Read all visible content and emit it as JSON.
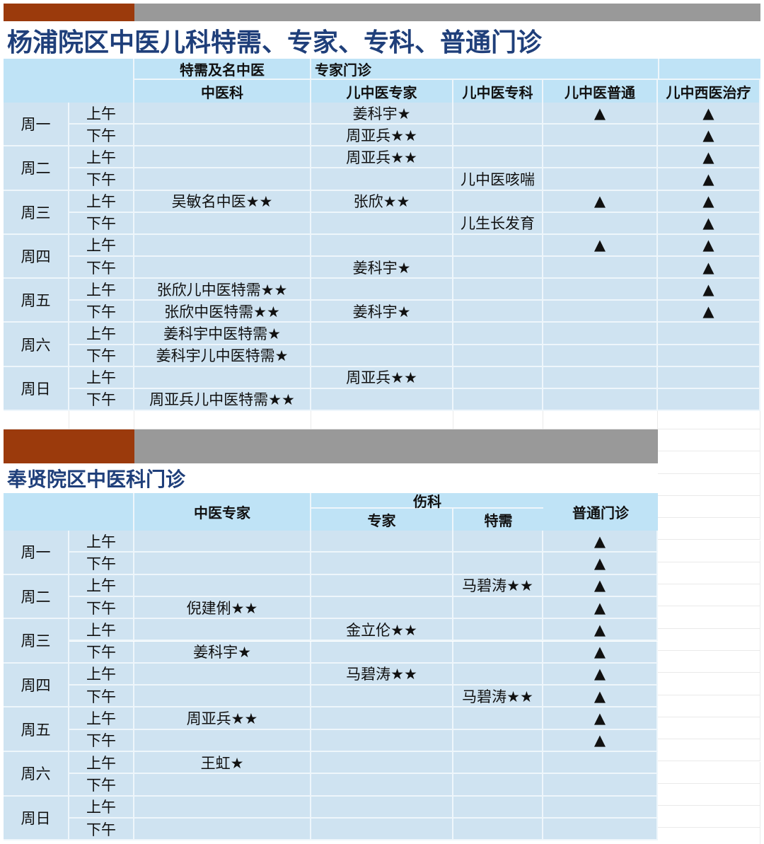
{
  "colors": {
    "accent_bar": "#9b3a0c",
    "gray_bar": "#999999",
    "title": "#1f3f7a",
    "header_bg": "#bfe3f6",
    "cell_bg": "#cfe3f1"
  },
  "yangpu": {
    "title": "杨浦院区中医儿科特需、专家、专科、普通门诊",
    "header_group1": "特需及名中医",
    "header_group2": "专家门诊",
    "columns": [
      "中医科",
      "儿中医专家",
      "儿中医专科",
      "儿中医普通",
      "儿中西医治疗"
    ],
    "periods": [
      "上午",
      "下午"
    ],
    "days": [
      {
        "day": "周一",
        "am": [
          "",
          "姜科宇★",
          "",
          "▲",
          "▲"
        ],
        "pm": [
          "",
          "周亚兵★★",
          "",
          "",
          "▲"
        ]
      },
      {
        "day": "周二",
        "am": [
          "",
          "周亚兵★★",
          "",
          "",
          "▲"
        ],
        "pm": [
          "",
          "",
          "儿中医咳喘",
          "",
          "▲"
        ]
      },
      {
        "day": "周三",
        "am": [
          "吴敏名中医★★",
          "张欣★★",
          "",
          "▲",
          "▲"
        ],
        "pm": [
          "",
          "",
          "儿生长发育",
          "",
          "▲"
        ]
      },
      {
        "day": "周四",
        "am": [
          "",
          "",
          "",
          "▲",
          "▲"
        ],
        "pm": [
          "",
          "姜科宇★",
          "",
          "",
          "▲"
        ]
      },
      {
        "day": "周五",
        "am": [
          "张欣儿中医特需★★",
          "",
          "",
          "",
          "▲"
        ],
        "pm": [
          "张欣中医特需★★",
          "姜科宇★",
          "",
          "",
          "▲"
        ]
      },
      {
        "day": "周六",
        "am": [
          "姜科宇中医特需★",
          "",
          "",
          "",
          ""
        ],
        "pm": [
          "姜科宇儿中医特需★",
          "",
          "",
          "",
          ""
        ]
      },
      {
        "day": "周日",
        "am": [
          "",
          "周亚兵★★",
          "",
          "",
          ""
        ],
        "pm": [
          "周亚兵儿中医特需★★",
          "",
          "",
          "",
          ""
        ]
      }
    ]
  },
  "fengxian": {
    "title": "奉贤院区中医科门诊",
    "header_tcm": "中医专家",
    "header_group": "伤科",
    "header_expert": "专家",
    "header_special": "特需",
    "header_general": "普通门诊",
    "periods": [
      "上午",
      "下午"
    ],
    "days": [
      {
        "day": "周一",
        "am": [
          "",
          "",
          "",
          "▲"
        ],
        "pm": [
          "",
          "",
          "",
          "▲"
        ]
      },
      {
        "day": "周二",
        "am": [
          "",
          "",
          "马碧涛★★",
          "▲"
        ],
        "pm": [
          "倪建俐★★",
          "",
          "",
          "▲"
        ]
      },
      {
        "day": "周三",
        "am": [
          "",
          "金立伦★★",
          "",
          "▲"
        ],
        "pm": [
          "姜科宇★",
          "",
          "",
          "▲"
        ]
      },
      {
        "day": "周四",
        "am": [
          "",
          "马碧涛★★",
          "",
          "▲"
        ],
        "pm": [
          "",
          "",
          "马碧涛★★",
          "▲"
        ]
      },
      {
        "day": "周五",
        "am": [
          "周亚兵★★",
          "",
          "",
          "▲"
        ],
        "pm": [
          "",
          "",
          "",
          "▲"
        ]
      },
      {
        "day": "周六",
        "am": [
          "王虹★",
          "",
          "",
          ""
        ],
        "pm": [
          "",
          "",
          "",
          ""
        ]
      },
      {
        "day": "周日",
        "am": [
          "",
          "",
          "",
          ""
        ],
        "pm": [
          "",
          "",
          "",
          ""
        ]
      }
    ]
  }
}
